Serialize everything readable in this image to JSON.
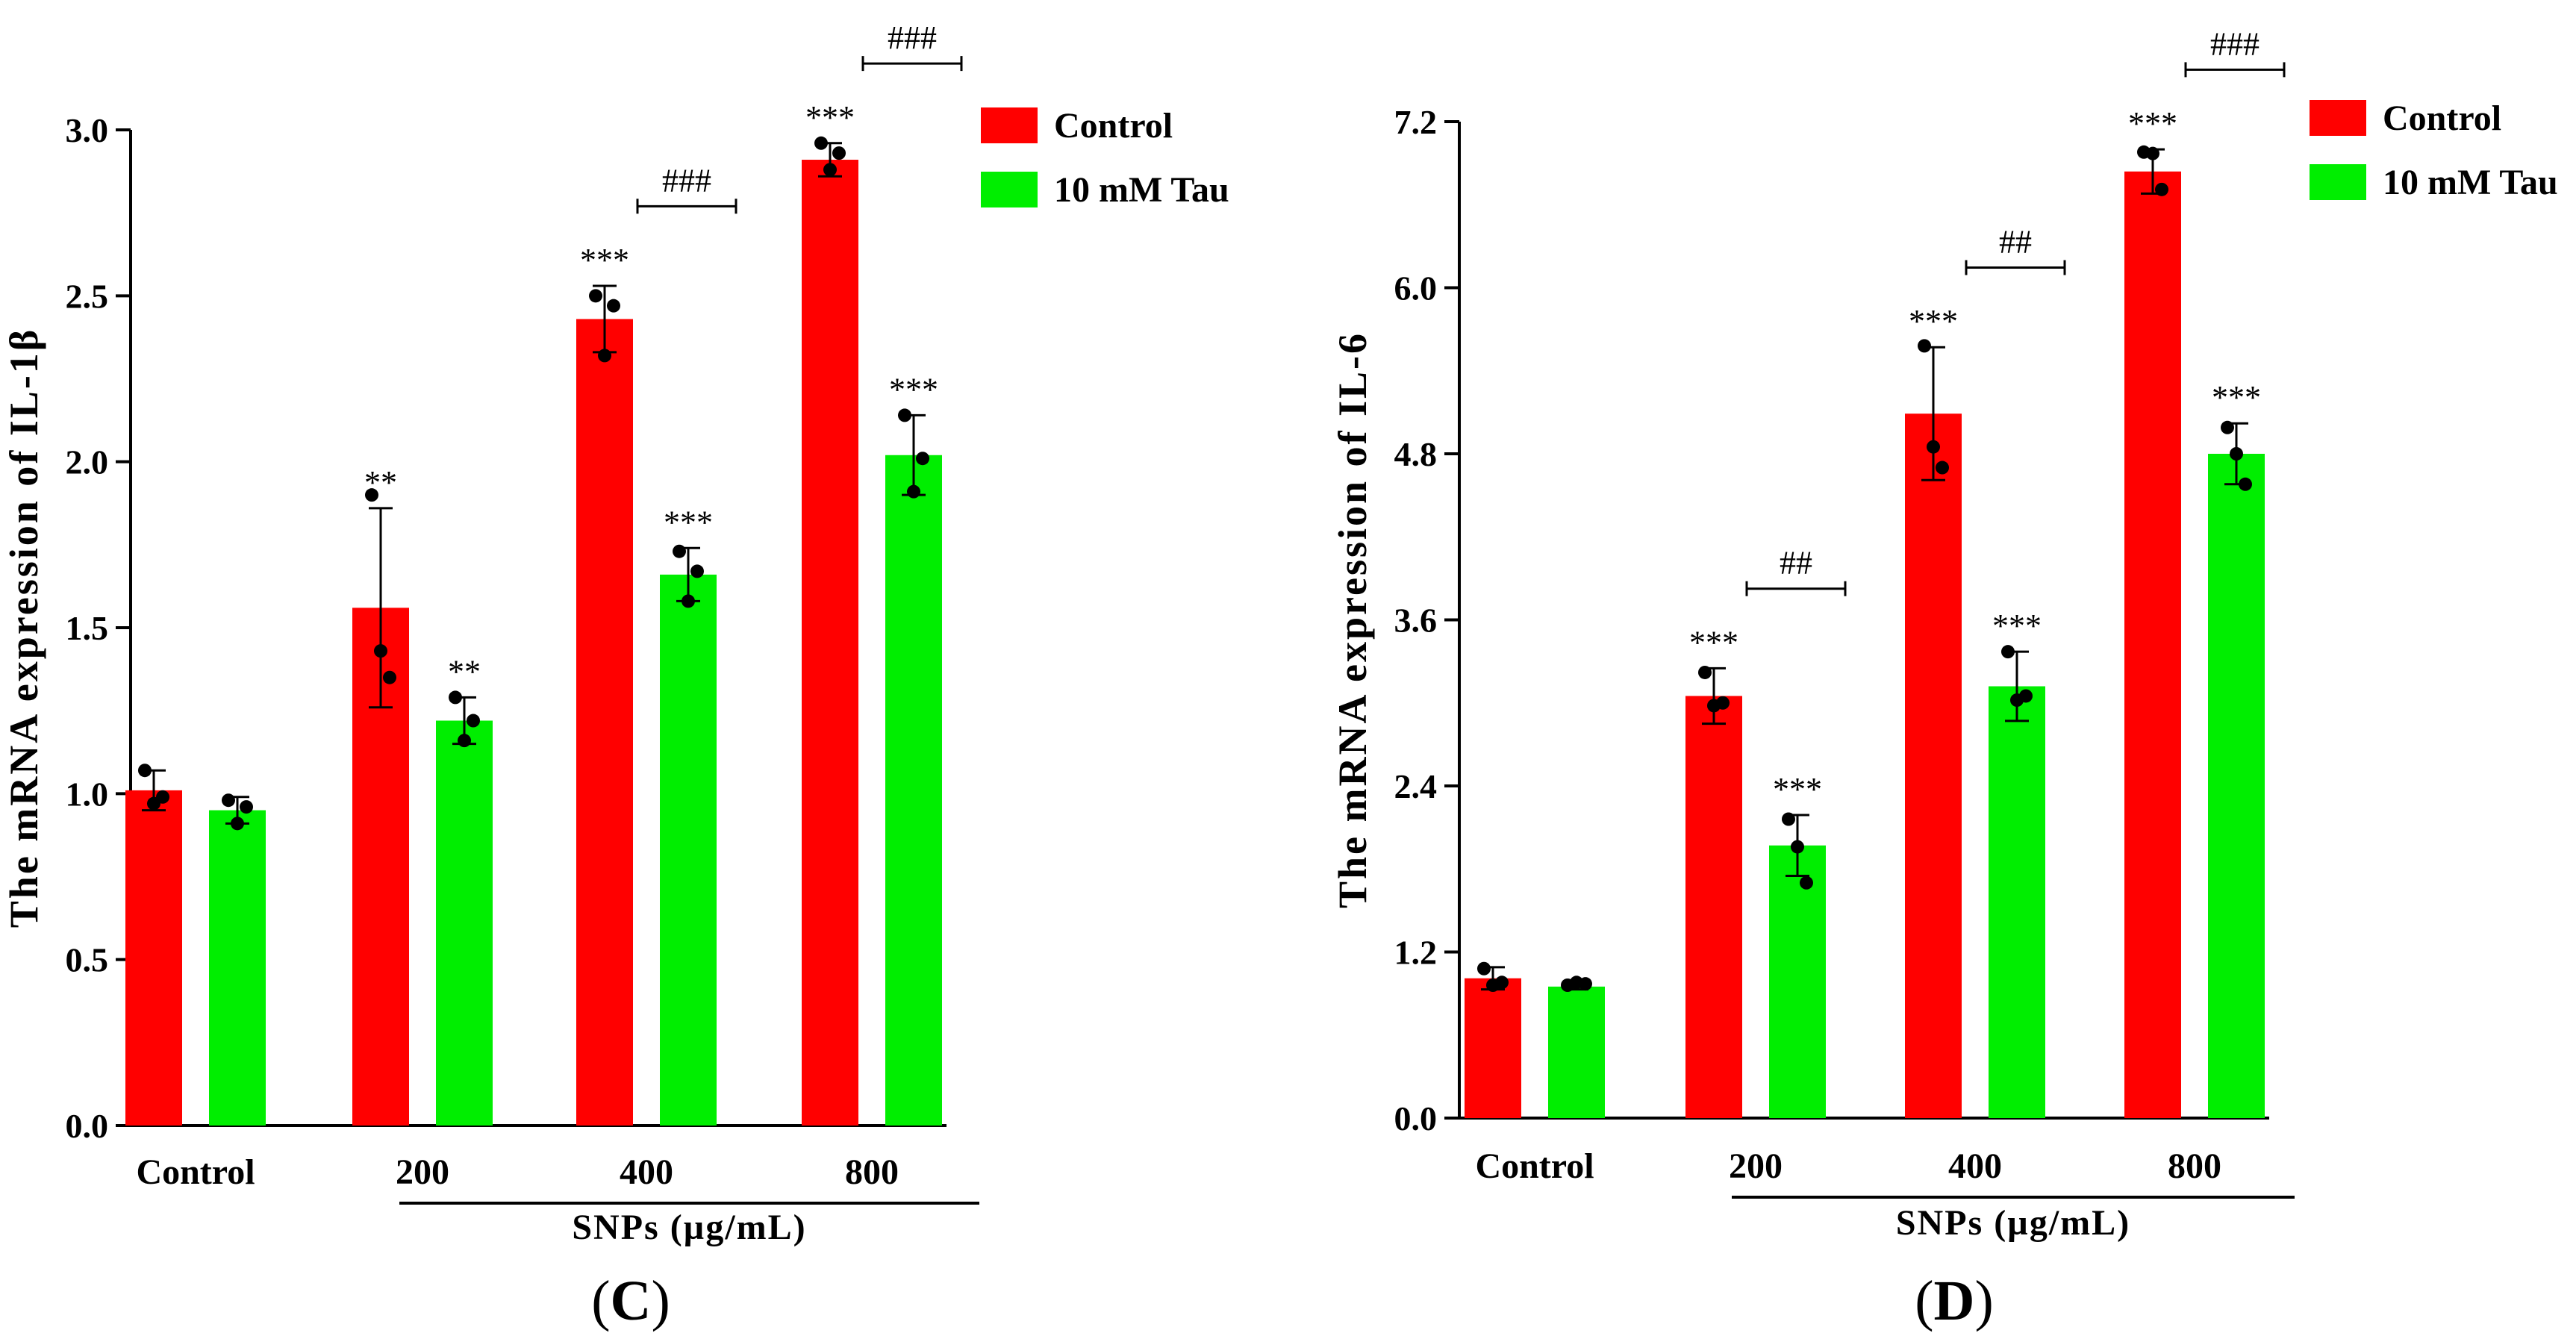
{
  "chart_data": [
    {
      "type": "bar",
      "panel_label": {
        "open": "(",
        "letter": "C",
        "close": ")"
      },
      "ylabel": "The mRNA expression of IL-1β",
      "ylim": [
        0,
        3.0
      ],
      "yticks": [
        "0.0",
        "0.5",
        "1.0",
        "1.5",
        "2.0",
        "2.5",
        "3.0"
      ],
      "categories": [
        "Control",
        "200",
        "400",
        "800"
      ],
      "group_label": "SNPs (µg/mL)",
      "legend_position": "top-right",
      "series": [
        {
          "name": "Control",
          "color": "#ff0000",
          "values": [
            1.01,
            1.56,
            2.43,
            2.91
          ],
          "errors": [
            0.06,
            0.3,
            0.1,
            0.05
          ],
          "points": [
            [
              1.07,
              0.97,
              0.99
            ],
            [
              1.9,
              1.43,
              1.35
            ],
            [
              2.5,
              2.32,
              2.47
            ],
            [
              2.96,
              2.88,
              2.93
            ]
          ],
          "sig": [
            "",
            "**",
            "***",
            "***"
          ]
        },
        {
          "name": "10 mM Tau",
          "color": "#00ee00",
          "values": [
            0.95,
            1.22,
            1.66,
            2.02
          ],
          "errors": [
            0.04,
            0.07,
            0.08,
            0.12
          ],
          "points": [
            [
              0.98,
              0.91,
              0.96
            ],
            [
              1.29,
              1.16,
              1.22
            ],
            [
              1.73,
              1.58,
              1.67
            ],
            [
              2.14,
              1.91,
              2.01
            ]
          ],
          "sig": [
            "",
            "**",
            "***",
            "***"
          ]
        }
      ],
      "comparisons": [
        {
          "category_index": 2,
          "label": "###"
        },
        {
          "category_index": 3,
          "label": "###"
        }
      ]
    },
    {
      "type": "bar",
      "panel_label": {
        "open": "(",
        "letter": "D",
        "close": ")"
      },
      "ylabel": "The mRNA expression of IL-6",
      "ylim": [
        0,
        7.2
      ],
      "yticks": [
        "0.0",
        "1.2",
        "2.4",
        "3.6",
        "4.8",
        "6.0",
        "7.2"
      ],
      "categories": [
        "Control",
        "200",
        "400",
        "800"
      ],
      "group_label": "SNPs (µg/mL)",
      "legend_position": "top-right",
      "series": [
        {
          "name": "Control",
          "color": "#ff0000",
          "values": [
            1.01,
            3.05,
            5.09,
            6.84
          ],
          "errors": [
            0.08,
            0.2,
            0.48,
            0.16
          ],
          "points": [
            [
              1.08,
              0.96,
              0.98
            ],
            [
              3.22,
              2.98,
              3.0
            ],
            [
              5.58,
              4.85,
              4.7
            ],
            [
              6.98,
              6.97,
              6.71
            ]
          ],
          "sig": [
            "",
            "***",
            "***",
            "***"
          ]
        },
        {
          "name": "10 mM Tau",
          "color": "#00ee00",
          "values": [
            0.95,
            1.97,
            3.12,
            4.8
          ],
          "errors": [
            0.02,
            0.22,
            0.25,
            0.22
          ],
          "points": [
            [
              0.96,
              0.98,
              0.97
            ],
            [
              2.16,
              1.96,
              1.7
            ],
            [
              3.37,
              3.02,
              3.05
            ],
            [
              4.99,
              4.8,
              4.58
            ]
          ],
          "sig": [
            "",
            "***",
            "***",
            "***"
          ]
        }
      ],
      "comparisons": [
        {
          "category_index": 1,
          "label": "##"
        },
        {
          "category_index": 2,
          "label": "##"
        },
        {
          "category_index": 3,
          "label": "###"
        }
      ]
    }
  ]
}
